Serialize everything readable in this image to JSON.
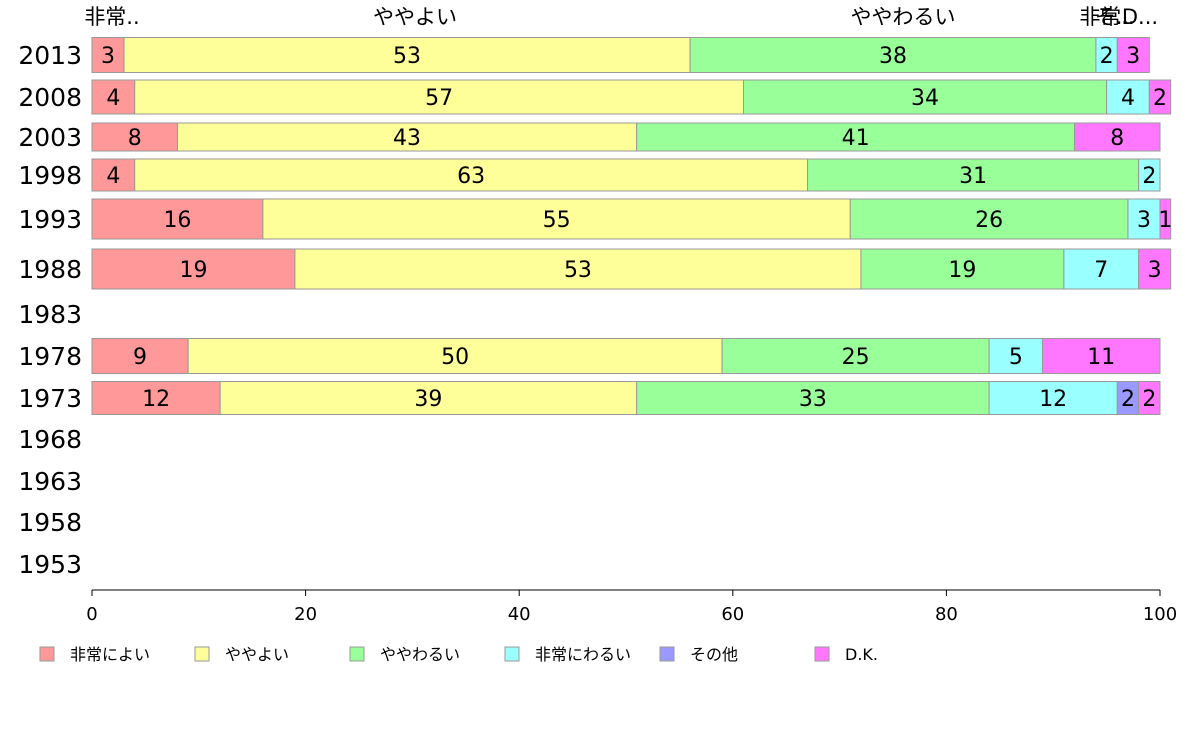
{
  "chart_data": {
    "type": "bar",
    "orientation": "horizontal",
    "stacked": true,
    "title": "",
    "xlabel": "",
    "ylabel": "",
    "xlim": [
      0,
      100
    ],
    "xticks": [
      0,
      20,
      40,
      60,
      80,
      100
    ],
    "categories": [
      "2013",
      "2008",
      "2003",
      "1998",
      "1993",
      "1988",
      "1983",
      "1978",
      "1973",
      "1968",
      "1963",
      "1958",
      "1953"
    ],
    "top_labels": [
      "非常..",
      "ややよい",
      "ややわるい",
      "非常..",
      "そ..",
      "D..."
    ],
    "series": [
      {
        "name": "非常によい",
        "color": "#ff9999",
        "values": [
          3,
          4,
          8,
          4,
          16,
          19,
          null,
          9,
          12,
          null,
          null,
          null,
          null
        ]
      },
      {
        "name": "ややよい",
        "color": "#ffff99",
        "values": [
          53,
          57,
          43,
          63,
          55,
          53,
          null,
          50,
          39,
          null,
          null,
          null,
          null
        ]
      },
      {
        "name": "ややわるい",
        "color": "#99ff99",
        "values": [
          38,
          34,
          41,
          31,
          26,
          19,
          null,
          25,
          33,
          null,
          null,
          null,
          null
        ]
      },
      {
        "name": "非常にわるい",
        "color": "#99ffff",
        "values": [
          2,
          4,
          0,
          2,
          3,
          7,
          null,
          5,
          12,
          null,
          null,
          null,
          null
        ]
      },
      {
        "name": "その他",
        "color": "#9999ff",
        "values": [
          0,
          0,
          0,
          0,
          0,
          0,
          null,
          0,
          2,
          null,
          null,
          null,
          null
        ]
      },
      {
        "name": "D.K.",
        "color": "#ff77ff",
        "values": [
          3,
          2,
          8,
          0,
          1,
          3,
          null,
          11,
          2,
          null,
          null,
          null,
          null
        ]
      }
    ],
    "legend_position": "bottom"
  }
}
